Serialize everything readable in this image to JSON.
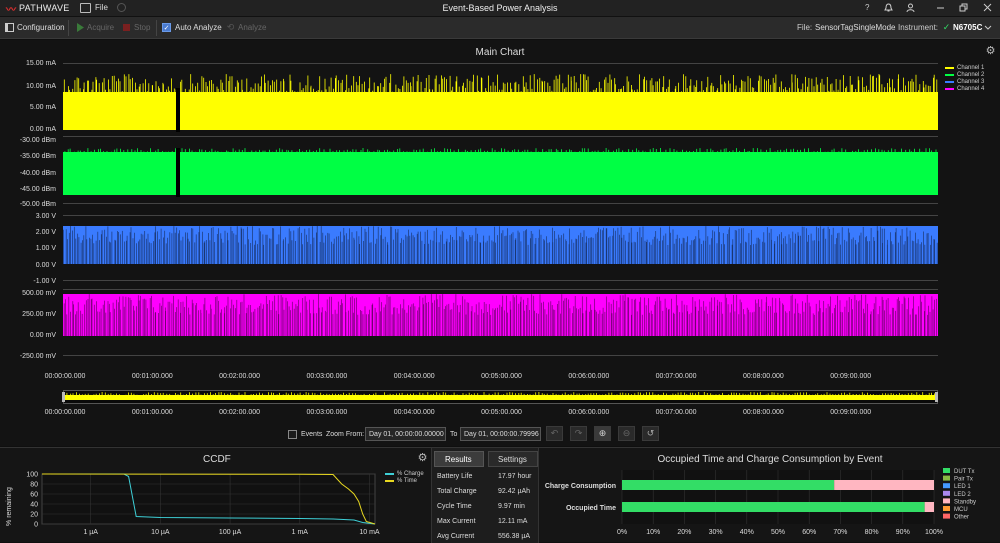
{
  "app": {
    "logo_text": "PATHWAVE",
    "title": "Event-Based Power Analysis",
    "menu_file": "File",
    "help": "?"
  },
  "toolbar": {
    "configuration": "Configuration",
    "acquire": "Acquire",
    "stop": "Stop",
    "auto_analyze": "Auto Analyze",
    "auto_analyze_checked": true,
    "analyze": "Analyze",
    "file_label": "File:",
    "file_value": "SensorTagSingleMode",
    "instrument_label": "Instrument:",
    "instrument_value": "N6705C"
  },
  "main_chart": {
    "title": "Main Chart",
    "legend": [
      "Channel 1",
      "Channel 2",
      "Channel 3",
      "Channel 4"
    ],
    "legend_colors": [
      "#ffff00",
      "#00ff44",
      "#3a7bff",
      "#ff00ff"
    ],
    "lane1_ticks": [
      "15.00 mA",
      "10.00 mA",
      "5.00 mA",
      "0.00 mA"
    ],
    "lane2_ticks": [
      "-30.00 dBm",
      "-35.00 dBm",
      "-40.00 dBm",
      "-45.00 dBm",
      "-50.00 dBm"
    ],
    "lane3_ticks": [
      "3.00 V",
      "2.00 V",
      "1.00 V",
      "0.00 V",
      "-1.00 V"
    ],
    "lane4_ticks": [
      "500.00 mV",
      "250.00 mV",
      "0.00 mV",
      "-250.00 mV"
    ],
    "x_ticks": [
      "00:00:00.000",
      "00:01:00.000",
      "00:02:00.000",
      "00:03:00.000",
      "00:04:00.000",
      "00:05:00.000",
      "00:06:00.000",
      "00:07:00.000",
      "00:08:00.000",
      "00:09:00.000"
    ],
    "nav_x_ticks": [
      "00:00:00.000",
      "00:01:00.000",
      "00:02:00.000",
      "00:03:00.000",
      "00:04:00.000",
      "00:05:00.000",
      "00:06:00.000",
      "00:07:00.000",
      "00:08:00.000",
      "00:09:00.000"
    ]
  },
  "controls": {
    "events_label": "Events",
    "events_checked": false,
    "zoom_from_label": "Zoom From:",
    "zoom_from_value": "Day 01, 00:00:00.00000",
    "to_label": "To",
    "to_value": "Day 01, 00:00:00.79996"
  },
  "ccdf": {
    "title": "CCDF",
    "ylabel": "% remaining",
    "y_ticks": [
      "100",
      "80",
      "60",
      "40",
      "20",
      "0"
    ],
    "x_ticks": [
      "1 µA",
      "10 µA",
      "100 µA",
      "1 mA",
      "10 mA"
    ],
    "legend": [
      "% Charge",
      "% Time"
    ],
    "colors": [
      "#3ecfd6",
      "#e8d820"
    ]
  },
  "results": {
    "tab_results": "Results",
    "tab_settings": "Settings",
    "rows": [
      {
        "label": "Battery Life",
        "value": "17.97 hour"
      },
      {
        "label": "Total Charge",
        "value": "92.42 µAh"
      },
      {
        "label": "Cycle Time",
        "value": "9.97 min"
      },
      {
        "label": "Max Current",
        "value": "12.11 mA"
      },
      {
        "label": "Avg Current",
        "value": "556.38 µA"
      }
    ]
  },
  "chart_data": [
    {
      "type": "line",
      "title": "CCDF",
      "ylabel": "% remaining",
      "xlabel": "",
      "x_scale": "log",
      "x": [
        "1 µA",
        "10 µA",
        "100 µA",
        "1 mA",
        "10 mA"
      ],
      "ylim": [
        0,
        100
      ],
      "series": [
        {
          "name": "% Charge",
          "points": [
            [
              2e-07,
              100
            ],
            [
              3e-06,
              100
            ],
            [
              3.5e-06,
              95
            ],
            [
              4.5e-06,
              15
            ],
            [
              1e-05,
              13
            ],
            [
              0.0001,
              12
            ],
            [
              0.001,
              11
            ],
            [
              0.003,
              10
            ],
            [
              0.006,
              8
            ],
            [
              0.008,
              3
            ],
            [
              0.012,
              0
            ]
          ]
        },
        {
          "name": "% Time",
          "points": [
            [
              2e-07,
              100
            ],
            [
              0.001,
              99.5
            ],
            [
              0.003,
              99
            ],
            [
              0.004,
              80
            ],
            [
              0.005,
              70
            ],
            [
              0.006,
              60
            ],
            [
              0.007,
              45
            ],
            [
              0.008,
              20
            ],
            [
              0.009,
              5
            ],
            [
              0.012,
              0
            ]
          ]
        }
      ]
    },
    {
      "type": "bar",
      "title": "Occupied Time and Charge Consumption by Event",
      "orientation": "horizontal",
      "stacked": true,
      "categories": [
        "Charge Consumption",
        "Occupied Time"
      ],
      "x_ticks": [
        "0%",
        "10%",
        "20%",
        "30%",
        "40%",
        "50%",
        "60%",
        "70%",
        "80%",
        "90%",
        "100%"
      ],
      "xlim": [
        0,
        100
      ],
      "series": [
        {
          "name": "DUT Tx",
          "color": "#33dd66",
          "values": [
            68,
            97
          ]
        },
        {
          "name": "Pair Tx",
          "color": "#88bb44",
          "values": [
            0,
            0
          ]
        },
        {
          "name": "LED 1",
          "color": "#4499ff",
          "values": [
            0,
            0
          ]
        },
        {
          "name": "LED 2",
          "color": "#aa88ee",
          "values": [
            0,
            0
          ]
        },
        {
          "name": "Standby",
          "color": "#ffb6c1",
          "values": [
            32,
            3
          ]
        },
        {
          "name": "MCU",
          "color": "#ff9933",
          "values": [
            0,
            0
          ]
        },
        {
          "name": "Other",
          "color": "#ff6666",
          "values": [
            0,
            0
          ]
        }
      ]
    }
  ]
}
